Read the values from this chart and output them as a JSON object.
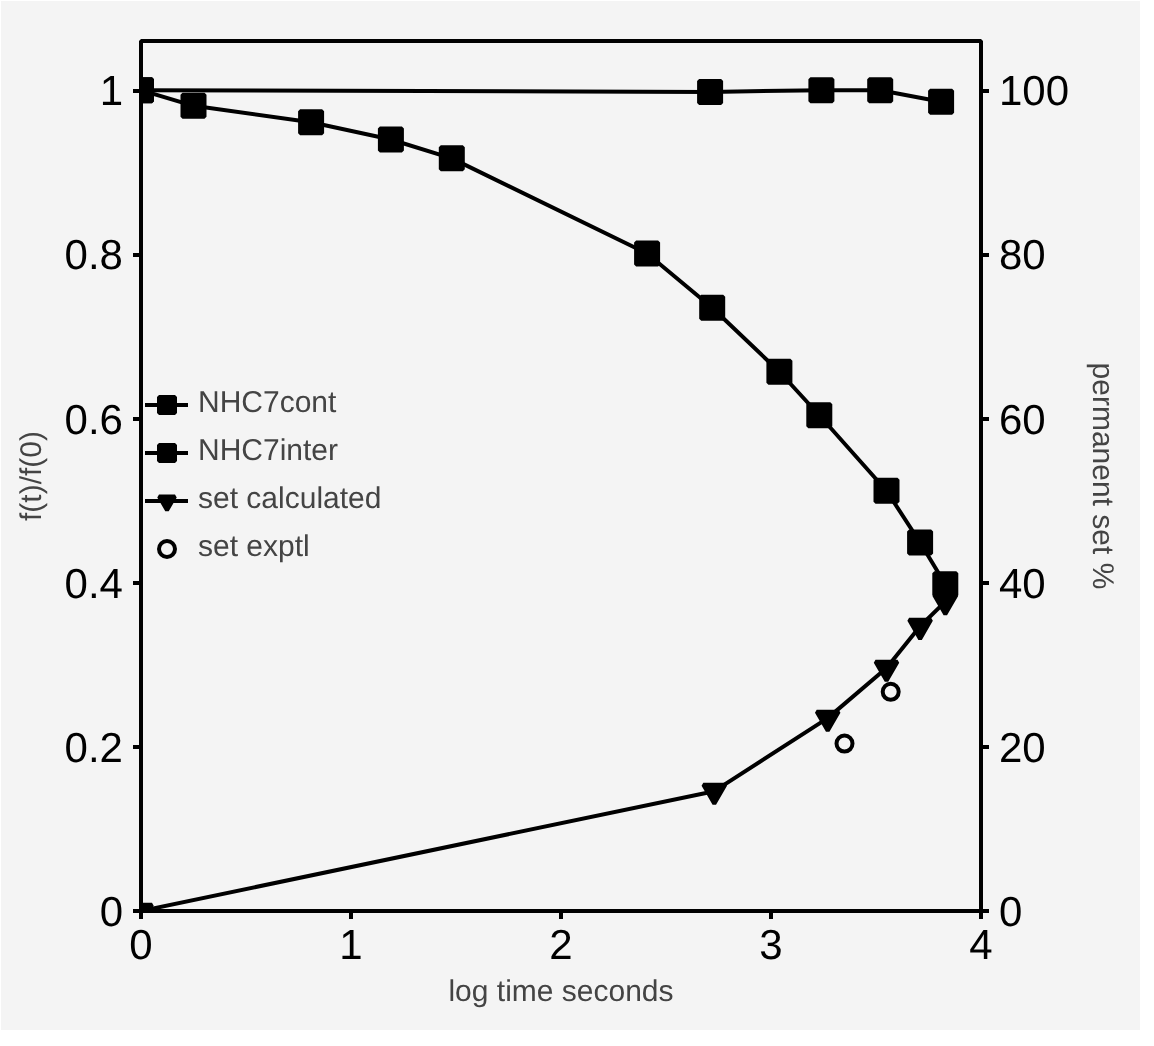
{
  "chart_data": {
    "type": "line",
    "xlabel": "log time seconds",
    "ylabel": "f(t)/f(0)",
    "y2label": "permanent set %",
    "xlim": [
      0,
      4
    ],
    "xticks": [
      0,
      1,
      2,
      3,
      4
    ],
    "ylim": [
      0,
      1.06
    ],
    "yticks": [
      0,
      0.2,
      0.4,
      0.6,
      0.8,
      1
    ],
    "y2lim": [
      0,
      106
    ],
    "y2ticks": [
      0,
      20,
      40,
      60,
      80,
      100
    ],
    "grid": false,
    "legend": "left",
    "series": [
      {
        "name": "NHC7cont",
        "color": "#000000",
        "marker": "square",
        "x": [
          0,
          2.71,
          3.24,
          3.52,
          3.81
        ],
        "values": [
          1.0,
          0.998,
          1.0,
          1.0,
          0.986
        ]
      },
      {
        "name": "NHC7inter",
        "color": "#000000",
        "marker": "square",
        "x": [
          0,
          0.25,
          0.81,
          1.19,
          1.48,
          2.41,
          2.72,
          3.04,
          3.23,
          3.55,
          3.71,
          3.83
        ],
        "values": [
          1.0,
          0.981,
          0.961,
          0.94,
          0.917,
          0.801,
          0.735,
          0.657,
          0.604,
          0.512,
          0.449,
          0.398
        ]
      },
      {
        "name": "set calculated",
        "color": "#000000",
        "marker": "triangle",
        "axis": "y2",
        "x": [
          0,
          2.73,
          3.27,
          3.55,
          3.71,
          3.83
        ],
        "values": [
          0,
          14.6,
          23.5,
          29.6,
          34.7,
          37.7
        ]
      },
      {
        "name": "set exptl",
        "type": "scatter",
        "color": "#000000",
        "marker": "circle",
        "axis": "y2",
        "x": [
          3.35,
          3.57
        ],
        "values": [
          20.4,
          26.7
        ]
      }
    ]
  }
}
